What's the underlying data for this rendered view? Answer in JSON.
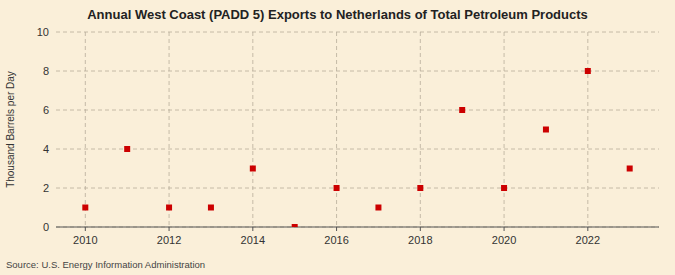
{
  "chart_data": {
    "type": "scatter",
    "title": "Annual West Coast (PADD 5) Exports to Netherlands of Total Petroleum Products",
    "y_label": "Thousand Barrels per Day",
    "source": "Source: U.S. Energy Information Administration",
    "x": [
      2010,
      2011,
      2012,
      2013,
      2014,
      2015,
      2016,
      2017,
      2018,
      2019,
      2020,
      2021,
      2022,
      2023
    ],
    "values": [
      1,
      4,
      1,
      1,
      3,
      0,
      2,
      1,
      2,
      6,
      2,
      5,
      8,
      3
    ],
    "color": "#cc0000",
    "marker": "square",
    "xlim": [
      2009.3,
      2023.7
    ],
    "ylim": [
      0,
      10
    ],
    "xticks": [
      2010,
      2012,
      2014,
      2016,
      2018,
      2020,
      2022
    ],
    "yticks": [
      0,
      2,
      4,
      6,
      8,
      10
    ],
    "grid": true
  }
}
